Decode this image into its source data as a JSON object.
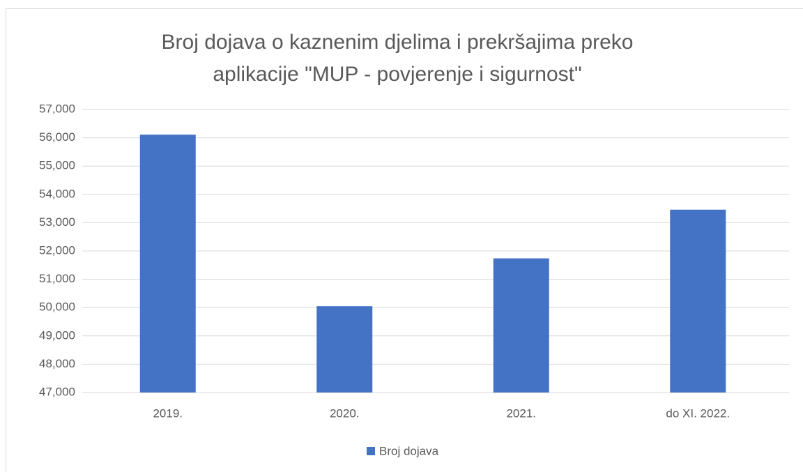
{
  "chart_data": {
    "type": "bar",
    "title": [
      "Broj dojava o kaznenim djelima i prekršajima preko",
      "aplikacije \"MUP - povjerenje i sigurnost\""
    ],
    "categories": [
      "2019.",
      "2020.",
      "2021.",
      "do XI. 2022."
    ],
    "series": [
      {
        "name": "Broj dojava",
        "color": "#4472c4",
        "values": [
          56110,
          50050,
          51740,
          53460
        ]
      }
    ],
    "ylim": [
      47000,
      57000
    ],
    "yticks": [
      {
        "value": 47000,
        "label": "47,000"
      },
      {
        "value": 48000,
        "label": "48,000"
      },
      {
        "value": 49000,
        "label": "49,000"
      },
      {
        "value": 50000,
        "label": "50,000"
      },
      {
        "value": 51000,
        "label": "51,000"
      },
      {
        "value": 52000,
        "label": "52,000"
      },
      {
        "value": 53000,
        "label": "53,000"
      },
      {
        "value": 54000,
        "label": "54,000"
      },
      {
        "value": 55000,
        "label": "55,000"
      },
      {
        "value": 56000,
        "label": "56,000"
      },
      {
        "value": 57000,
        "label": "57,000"
      }
    ],
    "grid": true,
    "legend": "bottom"
  }
}
